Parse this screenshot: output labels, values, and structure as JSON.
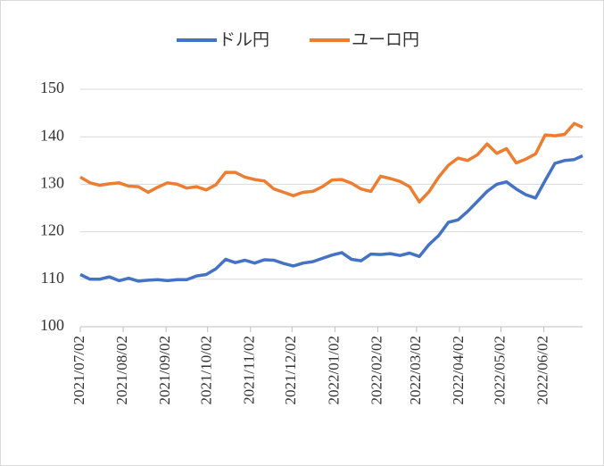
{
  "chart_data": {
    "type": "line",
    "x": [
      "2021/07/02",
      "2021/07/09",
      "2021/07/16",
      "2021/07/23",
      "2021/07/30",
      "2021/08/06",
      "2021/08/13",
      "2021/08/20",
      "2021/08/27",
      "2021/09/03",
      "2021/09/10",
      "2021/09/17",
      "2021/09/24",
      "2021/10/01",
      "2021/10/08",
      "2021/10/15",
      "2021/10/22",
      "2021/10/29",
      "2021/11/05",
      "2021/11/12",
      "2021/11/19",
      "2021/11/26",
      "2021/12/03",
      "2021/12/10",
      "2021/12/17",
      "2021/12/24",
      "2021/12/31",
      "2022/01/07",
      "2022/01/14",
      "2022/01/21",
      "2022/01/28",
      "2022/02/04",
      "2022/02/11",
      "2022/02/18",
      "2022/02/25",
      "2022/03/04",
      "2022/03/11",
      "2022/03/18",
      "2022/03/25",
      "2022/04/01",
      "2022/04/08",
      "2022/04/15",
      "2022/04/22",
      "2022/04/29",
      "2022/05/06",
      "2022/05/13",
      "2022/05/20",
      "2022/05/27",
      "2022/06/03",
      "2022/06/10",
      "2022/06/17",
      "2022/06/24",
      "2022/06/30"
    ],
    "series": [
      {
        "name": "ドル円",
        "color": "#4472c4",
        "values": [
          111,
          110,
          110,
          110.5,
          109.7,
          110.2,
          109.6,
          109.8,
          109.9,
          109.7,
          109.9,
          109.9,
          110.7,
          111,
          112.2,
          114.2,
          113.5,
          114,
          113.4,
          114.1,
          114,
          113.3,
          112.8,
          113.4,
          113.7,
          114.4,
          115.1,
          115.6,
          114.2,
          113.9,
          115.3,
          115.2,
          115.4,
          115,
          115.5,
          114.8,
          117.3,
          119.2,
          122,
          122.5,
          124.3,
          126.4,
          128.5,
          130,
          130.5,
          129,
          127.8,
          127.1,
          130.8,
          134.4,
          135,
          135.2,
          136
        ]
      },
      {
        "name": "ユーロ円",
        "color": "#ed7d31",
        "values": [
          131.5,
          130.3,
          129.8,
          130.1,
          130.3,
          129.6,
          129.5,
          128.3,
          129.4,
          130.3,
          130,
          129.2,
          129.5,
          128.8,
          129.9,
          132.5,
          132.5,
          131.5,
          131,
          130.7,
          129,
          128.3,
          127.6,
          128.3,
          128.5,
          129.5,
          130.9,
          131,
          130.2,
          129,
          128.5,
          131.7,
          131.2,
          130.6,
          129.5,
          126.3,
          128.4,
          131.5,
          134,
          135.5,
          135,
          136.2,
          138.5,
          136.5,
          137.5,
          134.5,
          135.3,
          136.4,
          140.4,
          140.2,
          140.5,
          142.8,
          142
        ]
      }
    ],
    "xlim": [
      "2021/07/02",
      "2022/06/30"
    ],
    "xticks": [
      "2021/07/02",
      "2021/08/02",
      "2021/09/02",
      "2021/10/02",
      "2021/11/02",
      "2021/12/02",
      "2022/01/02",
      "2022/02/02",
      "2022/03/02",
      "2022/04/02",
      "2022/05/02",
      "2022/06/02"
    ],
    "ylim": [
      100,
      150
    ],
    "yticks": [
      100,
      110,
      120,
      130,
      140,
      150
    ],
    "grid": true,
    "legend": "top"
  }
}
